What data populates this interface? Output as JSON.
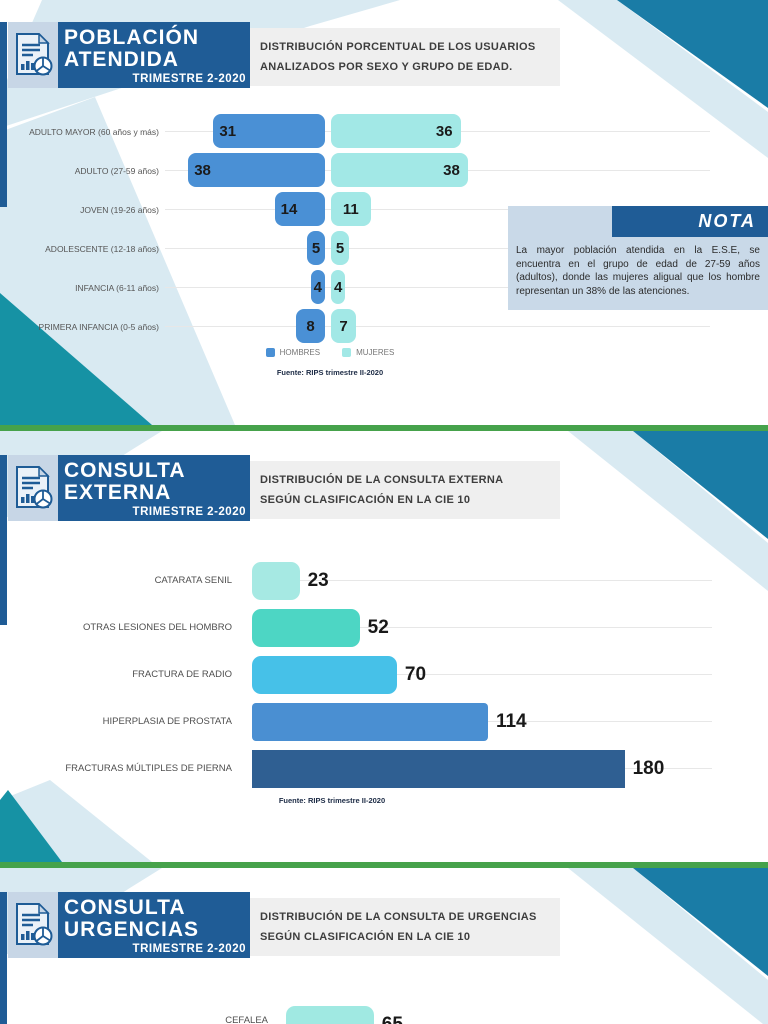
{
  "colors": {
    "accent_blue": "#1f5c96",
    "hombres_blue": "#4a90d5",
    "mujeres_cyan": "#a2e8e6",
    "divider_green": "#46a24b",
    "pale_band": "#d9eaf2",
    "teal_wedge_right": "#1a7ca6",
    "teal_wedge_left": "#1692a4",
    "note_bg": "#c9d9e8",
    "subtitle_bg": "#efefef"
  },
  "sections": [
    {
      "badge": {
        "line1": "POBLACIÓN",
        "line2": "ATENDIDA",
        "period": "TRIMESTRE 2-2020"
      },
      "subtitle": {
        "line1": "DISTRIBUCIÓN PORCENTUAL DE LOS USUARIOS",
        "line2": "ANALIZADOS POR SEXO Y GRUPO DE EDAD."
      }
    },
    {
      "badge": {
        "line1": "CONSULTA",
        "line2": "EXTERNA",
        "period": "TRIMESTRE 2-2020"
      },
      "subtitle": {
        "line1": "DISTRIBUCIÓN DE LA CONSULTA EXTERNA",
        "line2": "SEGÚN CLASIFICACIÓN EN LA CIE 10"
      }
    },
    {
      "badge": {
        "line1": "CONSULTA",
        "line2": "URGENCIAS",
        "period": "TRIMESTRE 2-2020"
      },
      "subtitle": {
        "line1": "DISTRIBUCIÓN DE LA CONSULTA DE URGENCIAS",
        "line2": "SEGÚN CLASIFICACIÓN EN LA CIE 10"
      }
    }
  ],
  "note": {
    "title": "NOTA",
    "body": "La mayor población atendida en la E.S.E, se encuentra en el grupo de edad de 27-59 años (adultos), donde las mujeres aligual que los hombre representan un 38% de las atenciones."
  },
  "chart_data": [
    {
      "type": "bar",
      "variant": "diverging-pyramid",
      "title": "DISTRIBUCIÓN PORCENTUAL DE LOS USUARIOS ANALIZADOS POR SEXO Y GRUPO DE EDAD.",
      "categories": [
        "ADULTO MAYOR (60 años y más)",
        "ADULTO (27-59 años)",
        "JOVEN (19-26 años)",
        "ADOLESCENTE (12-18 años)",
        "INFANCIA (6-11 años)",
        "PRIMERA INFANCIA (0-5 años)"
      ],
      "series": [
        {
          "name": "HOMBRES",
          "color": "#4a90d5",
          "values": [
            31,
            38,
            14,
            5,
            4,
            8
          ]
        },
        {
          "name": "MUJERES",
          "color": "#a2e8e6",
          "values": [
            36,
            38,
            11,
            5,
            4,
            7
          ]
        }
      ],
      "unit": "%",
      "grid": true,
      "legend_position": "bottom",
      "source": "Fuente: RIPS trimestre II-2020"
    },
    {
      "type": "bar",
      "variant": "horizontal",
      "title": "DISTRIBUCIÓN DE LA CONSULTA EXTERNA SEGÚN CLASIFICACIÓN EN LA CIE 10",
      "categories": [
        "CATARATA SENIL",
        "OTRAS LESIONES DEL HOMBRO",
        "FRACTURA DE RADIO",
        "HIPERPLASIA DE PROSTATA",
        "FRACTURAS MÚLTIPLES DE PIERNA"
      ],
      "values": [
        23,
        52,
        70,
        114,
        180
      ],
      "colors": [
        "#a6e9e3",
        "#4dd6c4",
        "#46c1e8",
        "#4a8fd2",
        "#2f5f92"
      ],
      "xlim": [
        0,
        200
      ],
      "grid": true,
      "source": "Fuente: RIPS trimestre II-2020"
    },
    {
      "type": "bar",
      "variant": "horizontal",
      "title": "DISTRIBUCIÓN DE LA CONSULTA DE URGENCIAS SEGÚN CLASIFICACIÓN EN LA CIE 10",
      "categories": [
        "CEFALEA"
      ],
      "values": [
        65
      ],
      "colors": [
        "#a0e9e2"
      ],
      "grid": true
    }
  ]
}
